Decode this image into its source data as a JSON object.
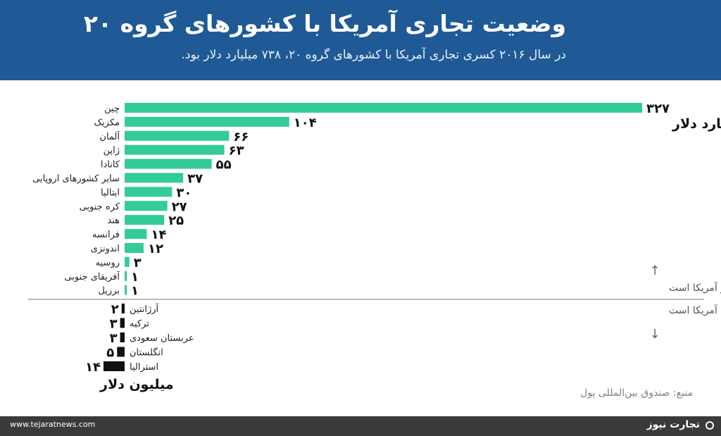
{
  "header": {
    "title": "وضعیت تجاری آمریکا با کشورهای گروه ۲۰",
    "subtitle": "در سال ۲۰۱۶ کسری تجاری آمریکا با کشورهای گروه ۲۰، ۷۳۸ میلیارد دلار بود."
  },
  "chart_data": {
    "type": "bar",
    "orientation": "horizontal",
    "colors": {
      "surplus": "#33cc99",
      "deficit": "#111111",
      "divider": "#9aa9b7",
      "note": "#555555"
    },
    "surplus_unit_label": "میلیارد دلار",
    "deficit_unit_label": "میلیون دلار",
    "surplus_note": "صادرات این کشورها به آمریکا بیش از وارداتشان از آمریکا است",
    "deficit_note": "واردات این کشورها  از آمریکا بیش از صادراتشان به آمریکا است",
    "arrow_up": "↑",
    "arrow_down": "↓",
    "surplus": {
      "categories": [
        "چین",
        "مکزیک",
        "آلمان",
        "ژاپن",
        "کانادا",
        "سایر کشورهای اروپایی",
        "ایتالیا",
        "کره جنوبی",
        "هند",
        "فرانسه",
        "اندونزی",
        "روسیه",
        "آفریقای جنوبی",
        "برزیل"
      ],
      "values": [
        327,
        104,
        66,
        63,
        55,
        37,
        30,
        27,
        25,
        14,
        12,
        3,
        1,
        1
      ],
      "value_labels": [
        "۳۲۷",
        "۱۰۴",
        "۶۶",
        "۶۳",
        "۵۵",
        "۳۷",
        "۳۰",
        "۲۷",
        "۲۵",
        "۱۴",
        "۱۲",
        "۳",
        "۱",
        "۱"
      ]
    },
    "deficit": {
      "categories": [
        "آرژانتین",
        "ترکیه",
        "عربستان سعودی",
        "انگلستان",
        "استرالیا"
      ],
      "values": [
        2,
        3,
        3,
        5,
        14
      ],
      "value_labels": [
        "۲",
        "۳",
        "۳",
        "۵",
        "۱۴"
      ]
    }
  },
  "source": "منبع: صندوق بین‌المللی پول",
  "footer": {
    "site": "www.tejaratnews.com",
    "brand": "تجارت نیوز"
  }
}
